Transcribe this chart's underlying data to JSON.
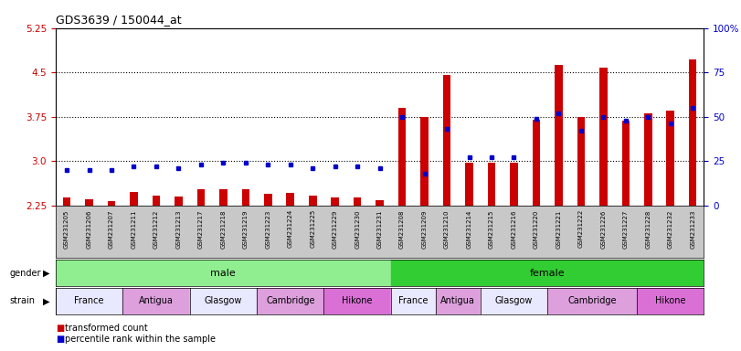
{
  "title": "GDS3639 / 150044_at",
  "samples": [
    "GSM231205",
    "GSM231206",
    "GSM231207",
    "GSM231211",
    "GSM231212",
    "GSM231213",
    "GSM231217",
    "GSM231218",
    "GSM231219",
    "GSM231223",
    "GSM231224",
    "GSM231225",
    "GSM231229",
    "GSM231230",
    "GSM231231",
    "GSM231208",
    "GSM231209",
    "GSM231210",
    "GSM231214",
    "GSM231215",
    "GSM231216",
    "GSM231220",
    "GSM231221",
    "GSM231222",
    "GSM231226",
    "GSM231227",
    "GSM231228",
    "GSM231232",
    "GSM231233"
  ],
  "red_values": [
    2.38,
    2.35,
    2.32,
    2.48,
    2.42,
    2.4,
    2.52,
    2.52,
    2.52,
    2.44,
    2.46,
    2.42,
    2.38,
    2.38,
    2.33,
    3.9,
    3.75,
    4.45,
    2.97,
    2.97,
    2.97,
    3.7,
    4.62,
    3.75,
    4.58,
    3.68,
    3.8,
    3.85,
    4.72
  ],
  "blue_pct": [
    20,
    20,
    20,
    22,
    22,
    21,
    23,
    24,
    24,
    23,
    23,
    21,
    22,
    22,
    21,
    50,
    18,
    43,
    27,
    27,
    27,
    49,
    52,
    42,
    50,
    48,
    50,
    46,
    55
  ],
  "ymin": 2.25,
  "ymax": 5.25,
  "yticks_left": [
    2.25,
    3.0,
    3.75,
    4.5,
    5.25
  ],
  "yticks_right": [
    0,
    25,
    50,
    75,
    100
  ],
  "gender_rows": [
    {
      "label": "male",
      "start": 0,
      "end": 15,
      "color": "#90EE90"
    },
    {
      "label": "female",
      "start": 15,
      "end": 29,
      "color": "#32CD32"
    }
  ],
  "strain_rows": [
    {
      "label": "France",
      "start": 0,
      "end": 3,
      "color": "#E8E8FF"
    },
    {
      "label": "Antigua",
      "start": 3,
      "end": 6,
      "color": "#DDA0DD"
    },
    {
      "label": "Glasgow",
      "start": 6,
      "end": 9,
      "color": "#E8E8FF"
    },
    {
      "label": "Cambridge",
      "start": 9,
      "end": 12,
      "color": "#DDA0DD"
    },
    {
      "label": "Hikone",
      "start": 12,
      "end": 15,
      "color": "#DA70D6"
    },
    {
      "label": "France",
      "start": 15,
      "end": 17,
      "color": "#E8E8FF"
    },
    {
      "label": "Antigua",
      "start": 17,
      "end": 19,
      "color": "#DDA0DD"
    },
    {
      "label": "Glasgow",
      "start": 19,
      "end": 22,
      "color": "#E8E8FF"
    },
    {
      "label": "Cambridge",
      "start": 22,
      "end": 26,
      "color": "#DDA0DD"
    },
    {
      "label": "Hikone",
      "start": 26,
      "end": 29,
      "color": "#DA70D6"
    }
  ],
  "bar_color": "#CC0000",
  "dot_color": "#0000CC",
  "xlabels_bg": "#C8C8C8",
  "left_axis_color": "#CC0000",
  "right_axis_color": "#0000CC"
}
